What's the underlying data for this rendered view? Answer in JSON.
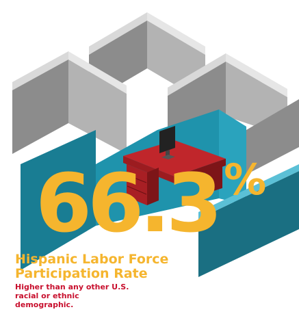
{
  "stat": {
    "value": "66.3",
    "unit": "%"
  },
  "title": "Hispanic Labor Force Participation Rate",
  "subtitle": "Higher than any other U.S. racial or ethnic demographic."
}
